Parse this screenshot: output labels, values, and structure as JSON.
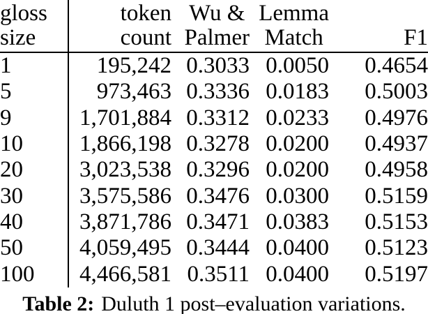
{
  "table": {
    "header": [
      {
        "line1": "gloss",
        "line2": "size"
      },
      {
        "line1": "token",
        "line2": "count"
      },
      {
        "line1": "Wu &",
        "line2": "Palmer"
      },
      {
        "line1": "Lemma",
        "line2": "Match"
      },
      {
        "line1": "",
        "line2": "F1"
      }
    ],
    "rows": [
      [
        "1",
        "195,242",
        "0.3033",
        "0.0050",
        "0.4654"
      ],
      [
        "5",
        "973,463",
        "0.3336",
        "0.0183",
        "0.5003"
      ],
      [
        "9",
        "1,701,884",
        "0.3312",
        "0.0233",
        "0.4976"
      ],
      [
        "10",
        "1,866,198",
        "0.3278",
        "0.0200",
        "0.4937"
      ],
      [
        "20",
        "3,023,538",
        "0.3296",
        "0.0200",
        "0.4958"
      ],
      [
        "30",
        "3,575,586",
        "0.3476",
        "0.0300",
        "0.5159"
      ],
      [
        "40",
        "3,871,786",
        "0.3471",
        "0.0383",
        "0.5153"
      ],
      [
        "50",
        "4,059,495",
        "0.3444",
        "0.0400",
        "0.5123"
      ],
      [
        "100",
        "4,466,581",
        "0.3511",
        "0.0400",
        "0.5197"
      ]
    ]
  },
  "caption": {
    "label": "Table 2:",
    "text": "Duluth 1 post–evaluation variations."
  },
  "colors": {
    "text": "#000000",
    "background": "#ffffff",
    "rule": "#000000"
  }
}
